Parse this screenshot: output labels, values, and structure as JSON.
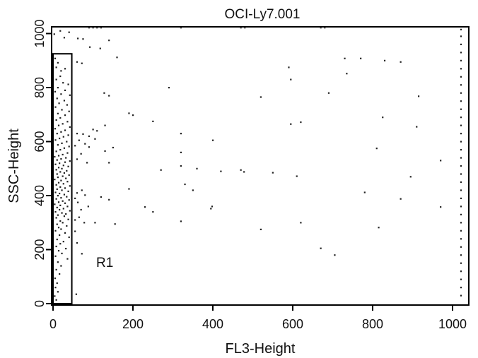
{
  "chart_data": {
    "type": "scatter",
    "title": "OCI-Ly7.001",
    "xlabel": "FL3-Height",
    "ylabel": "SSC-Height",
    "xlim": [
      0,
      1023
    ],
    "ylim": [
      0,
      1023
    ],
    "x_ticks": [
      0,
      200,
      400,
      600,
      800,
      1000
    ],
    "y_ticks": [
      0,
      200,
      400,
      600,
      800,
      1000
    ],
    "x_tick_labels": [
      "0",
      "200",
      "400",
      "600",
      "800",
      "1000"
    ],
    "y_tick_labels": [
      "0",
      "200",
      "400",
      "600",
      "800",
      "1000"
    ],
    "grid": false,
    "point_color": "#222222",
    "gate": {
      "label": "R1",
      "x_range": [
        0,
        47
      ],
      "y_range": [
        0,
        925
      ],
      "label_at": [
        108,
        152
      ]
    },
    "points": [
      [
        320,
        1022
      ],
      [
        470,
        1022
      ],
      [
        480,
        1022
      ],
      [
        670,
        1022
      ],
      [
        680,
        1022
      ],
      [
        90,
        1022
      ],
      [
        100,
        1022
      ],
      [
        110,
        1022
      ],
      [
        120,
        1022
      ],
      [
        140,
        975
      ],
      [
        75,
        980
      ],
      [
        62,
        982
      ],
      [
        92,
        950
      ],
      [
        118,
        945
      ],
      [
        160,
        912
      ],
      [
        60,
        895
      ],
      [
        72,
        890
      ],
      [
        128,
        780
      ],
      [
        140,
        770
      ],
      [
        290,
        800
      ],
      [
        190,
        705
      ],
      [
        200,
        698
      ],
      [
        130,
        660
      ],
      [
        250,
        675
      ],
      [
        100,
        645
      ],
      [
        110,
        640
      ],
      [
        60,
        630
      ],
      [
        75,
        628
      ],
      [
        90,
        620
      ],
      [
        105,
        610
      ],
      [
        65,
        605
      ],
      [
        80,
        592
      ],
      [
        55,
        585
      ],
      [
        90,
        580
      ],
      [
        150,
        578
      ],
      [
        130,
        565
      ],
      [
        70,
        555
      ],
      [
        60,
        535
      ],
      [
        85,
        522
      ],
      [
        140,
        522
      ],
      [
        320,
        630
      ],
      [
        320,
        560
      ],
      [
        400,
        605
      ],
      [
        270,
        495
      ],
      [
        320,
        510
      ],
      [
        360,
        500
      ],
      [
        420,
        490
      ],
      [
        470,
        495
      ],
      [
        478,
        488
      ],
      [
        550,
        485
      ],
      [
        610,
        472
      ],
      [
        330,
        442
      ],
      [
        350,
        420
      ],
      [
        190,
        425
      ],
      [
        230,
        358
      ],
      [
        250,
        340
      ],
      [
        395,
        352
      ],
      [
        398,
        360
      ],
      [
        140,
        385
      ],
      [
        120,
        395
      ],
      [
        60,
        410
      ],
      [
        72,
        420
      ],
      [
        80,
        402
      ],
      [
        55,
        390
      ],
      [
        62,
        375
      ],
      [
        88,
        360
      ],
      [
        70,
        348
      ],
      [
        65,
        320
      ],
      [
        55,
        310
      ],
      [
        78,
        300
      ],
      [
        105,
        300
      ],
      [
        155,
        295
      ],
      [
        320,
        305
      ],
      [
        520,
        275
      ],
      [
        620,
        300
      ],
      [
        670,
        205
      ],
      [
        705,
        180
      ],
      [
        55,
        268
      ],
      [
        60,
        225
      ],
      [
        72,
        185
      ],
      [
        58,
        35
      ],
      [
        520,
        765
      ],
      [
        590,
        875
      ],
      [
        595,
        830
      ],
      [
        595,
        665
      ],
      [
        620,
        672
      ],
      [
        690,
        780
      ],
      [
        730,
        908
      ],
      [
        735,
        852
      ],
      [
        770,
        908
      ],
      [
        825,
        690
      ],
      [
        830,
        900
      ],
      [
        870,
        895
      ],
      [
        910,
        655
      ],
      [
        915,
        768
      ],
      [
        810,
        575
      ],
      [
        895,
        470
      ],
      [
        780,
        412
      ],
      [
        870,
        388
      ],
      [
        815,
        282
      ],
      [
        970,
        530
      ],
      [
        970,
        358
      ],
      [
        5,
        908
      ],
      [
        12,
        892
      ],
      [
        8,
        875
      ],
      [
        20,
        862
      ],
      [
        30,
        870
      ],
      [
        18,
        842
      ],
      [
        8,
        830
      ],
      [
        25,
        818
      ],
      [
        38,
        812
      ],
      [
        12,
        800
      ],
      [
        30,
        790
      ],
      [
        5,
        785
      ],
      [
        20,
        776
      ],
      [
        42,
        772
      ],
      [
        10,
        760
      ],
      [
        28,
        752
      ],
      [
        15,
        742
      ],
      [
        35,
        736
      ],
      [
        6,
        728
      ],
      [
        22,
        718
      ],
      [
        40,
        712
      ],
      [
        12,
        704
      ],
      [
        30,
        698
      ],
      [
        18,
        688
      ],
      [
        8,
        680
      ],
      [
        36,
        674
      ],
      [
        24,
        666
      ],
      [
        14,
        660
      ],
      [
        42,
        654
      ],
      [
        5,
        648
      ],
      [
        30,
        642
      ],
      [
        20,
        636
      ],
      [
        10,
        630
      ],
      [
        38,
        624
      ],
      [
        26,
        618
      ],
      [
        16,
        612
      ],
      [
        6,
        606
      ],
      [
        34,
        600
      ],
      [
        22,
        594
      ],
      [
        12,
        588
      ],
      [
        40,
        582
      ],
      [
        28,
        576
      ],
      [
        18,
        570
      ],
      [
        8,
        564
      ],
      [
        36,
        558
      ],
      [
        24,
        552
      ],
      [
        14,
        548
      ],
      [
        4,
        544
      ],
      [
        32,
        540
      ],
      [
        20,
        536
      ],
      [
        10,
        532
      ],
      [
        42,
        528
      ],
      [
        30,
        524
      ],
      [
        16,
        520
      ],
      [
        6,
        516
      ],
      [
        26,
        512
      ],
      [
        38,
        508
      ],
      [
        14,
        504
      ],
      [
        22,
        500
      ],
      [
        8,
        496
      ],
      [
        34,
        492
      ],
      [
        18,
        488
      ],
      [
        28,
        484
      ],
      [
        10,
        480
      ],
      [
        40,
        476
      ],
      [
        24,
        472
      ],
      [
        12,
        468
      ],
      [
        32,
        464
      ],
      [
        4,
        460
      ],
      [
        20,
        456
      ],
      [
        36,
        452
      ],
      [
        14,
        448
      ],
      [
        26,
        444
      ],
      [
        8,
        440
      ],
      [
        42,
        436
      ],
      [
        18,
        432
      ],
      [
        30,
        428
      ],
      [
        10,
        424
      ],
      [
        22,
        420
      ],
      [
        38,
        416
      ],
      [
        6,
        412
      ],
      [
        16,
        408
      ],
      [
        28,
        404
      ],
      [
        12,
        400
      ],
      [
        34,
        396
      ],
      [
        20,
        392
      ],
      [
        8,
        388
      ],
      [
        40,
        384
      ],
      [
        24,
        380
      ],
      [
        14,
        376
      ],
      [
        30,
        372
      ],
      [
        4,
        368
      ],
      [
        18,
        364
      ],
      [
        36,
        360
      ],
      [
        10,
        356
      ],
      [
        26,
        352
      ],
      [
        16,
        348
      ],
      [
        42,
        344
      ],
      [
        6,
        340
      ],
      [
        22,
        336
      ],
      [
        32,
        332
      ],
      [
        12,
        328
      ],
      [
        28,
        324
      ],
      [
        8,
        318
      ],
      [
        38,
        312
      ],
      [
        18,
        306
      ],
      [
        24,
        300
      ],
      [
        10,
        294
      ],
      [
        34,
        288
      ],
      [
        14,
        282
      ],
      [
        20,
        276
      ],
      [
        6,
        270
      ],
      [
        30,
        262
      ],
      [
        16,
        254
      ],
      [
        40,
        246
      ],
      [
        10,
        238
      ],
      [
        26,
        230
      ],
      [
        18,
        222
      ],
      [
        8,
        212
      ],
      [
        32,
        204
      ],
      [
        14,
        196
      ],
      [
        22,
        186
      ],
      [
        6,
        176
      ],
      [
        36,
        166
      ],
      [
        12,
        154
      ],
      [
        20,
        140
      ],
      [
        8,
        126
      ],
      [
        16,
        110
      ],
      [
        5,
        94
      ],
      [
        10,
        76
      ],
      [
        6,
        60
      ],
      [
        12,
        44
      ],
      [
        4,
        28
      ],
      [
        8,
        14
      ],
      [
        3,
        998
      ],
      [
        18,
        1010
      ],
      [
        40,
        1005
      ],
      [
        28,
        985
      ],
      [
        1021,
        1015
      ],
      [
        1021,
        990
      ],
      [
        1021,
        960
      ],
      [
        1021,
        930
      ],
      [
        1021,
        900
      ],
      [
        1021,
        870
      ],
      [
        1021,
        840
      ],
      [
        1021,
        810
      ],
      [
        1021,
        780
      ],
      [
        1021,
        750
      ],
      [
        1021,
        720
      ],
      [
        1021,
        690
      ],
      [
        1021,
        660
      ],
      [
        1021,
        630
      ],
      [
        1021,
        600
      ],
      [
        1021,
        570
      ],
      [
        1021,
        540
      ],
      [
        1021,
        510
      ],
      [
        1021,
        480
      ],
      [
        1021,
        450
      ],
      [
        1021,
        420
      ],
      [
        1021,
        390
      ],
      [
        1021,
        360
      ],
      [
        1021,
        330
      ],
      [
        1021,
        300
      ],
      [
        1021,
        270
      ],
      [
        1021,
        240
      ],
      [
        1021,
        210
      ],
      [
        1021,
        180
      ],
      [
        1021,
        150
      ],
      [
        1021,
        120
      ],
      [
        1021,
        90
      ],
      [
        1021,
        60
      ],
      [
        1021,
        30
      ]
    ]
  }
}
